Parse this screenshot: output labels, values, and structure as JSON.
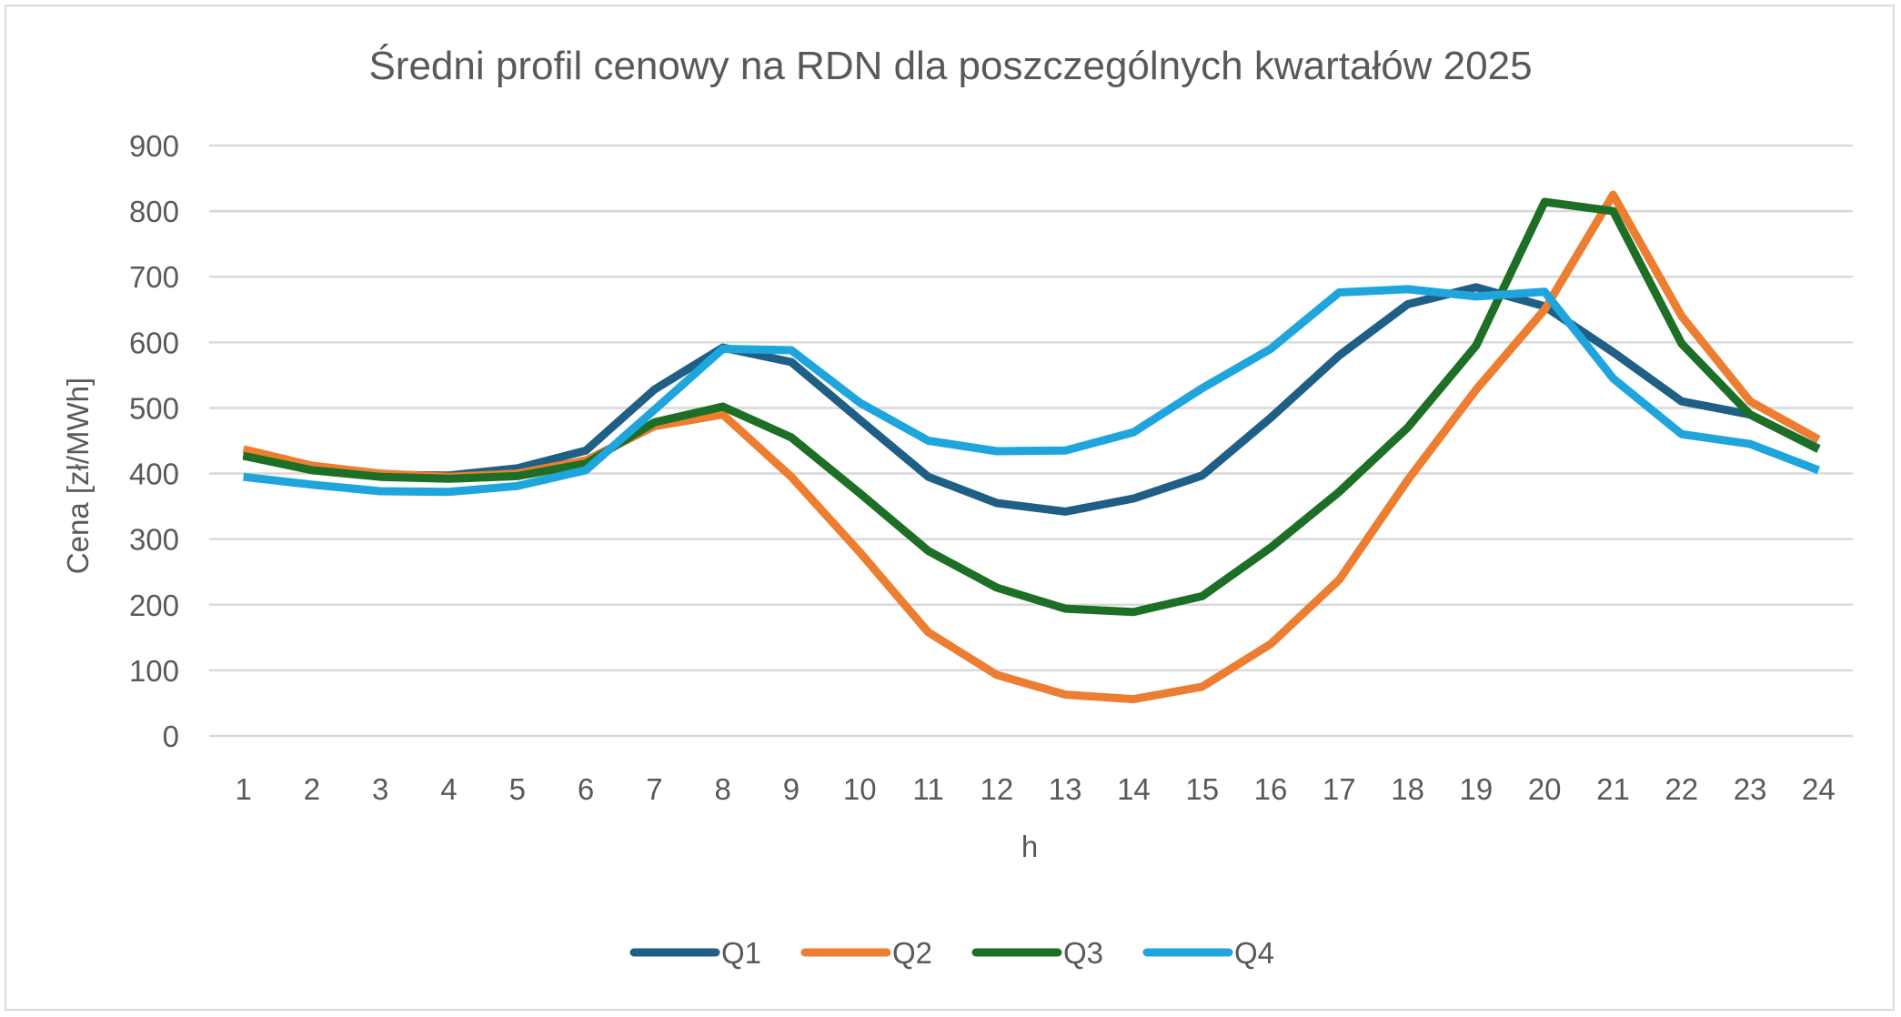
{
  "chart_data": {
    "type": "line",
    "title": "Średni profil cenowy na RDN dla poszczególnych kwartałów 2025",
    "xlabel": "h",
    "ylabel": "Cena [zł/MWh]",
    "ylim": [
      0,
      900
    ],
    "yticks": [
      0,
      100,
      200,
      300,
      400,
      500,
      600,
      700,
      800,
      900
    ],
    "categories": [
      "1",
      "2",
      "3",
      "4",
      "5",
      "6",
      "7",
      "8",
      "9",
      "10",
      "11",
      "12",
      "13",
      "14",
      "15",
      "16",
      "17",
      "18",
      "19",
      "20",
      "21",
      "22",
      "23",
      "24"
    ],
    "grid": true,
    "legend_position": "bottom",
    "series": [
      {
        "name": "Q1",
        "color": "#1f5f85",
        "values": [
          430,
          408,
          398,
          397,
          408,
          435,
          528,
          592,
          570,
          482,
          395,
          355,
          342,
          362,
          397,
          485,
          580,
          658,
          684,
          655,
          585,
          510,
          490,
          438
        ]
      },
      {
        "name": "Q2",
        "color": "#ed7d31",
        "values": [
          437,
          412,
          400,
          395,
          400,
          420,
          472,
          490,
          395,
          280,
          158,
          93,
          63,
          56,
          75,
          140,
          238,
          390,
          528,
          650,
          825,
          640,
          510,
          452
        ]
      },
      {
        "name": "Q3",
        "color": "#1d6f26",
        "values": [
          427,
          405,
          395,
          392,
          396,
          415,
          478,
          502,
          455,
          370,
          282,
          226,
          194,
          189,
          213,
          287,
          372,
          470,
          595,
          814,
          800,
          598,
          490,
          437
        ]
      },
      {
        "name": "Q4",
        "color": "#1ea5dc",
        "values": [
          395,
          383,
          373,
          372,
          381,
          405,
          497,
          590,
          588,
          508,
          450,
          434,
          435,
          463,
          530,
          590,
          676,
          681,
          670,
          677,
          545,
          460,
          445,
          405
        ]
      }
    ]
  }
}
